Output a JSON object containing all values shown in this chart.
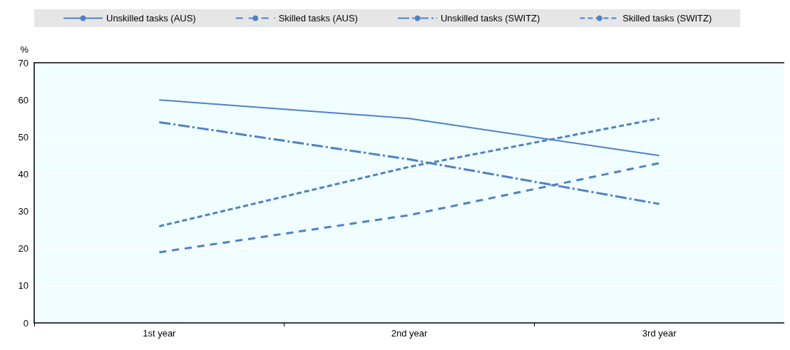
{
  "chart_data": {
    "type": "line",
    "ylabel": "%",
    "categories": [
      "1st year",
      "2nd year",
      "3rd year"
    ],
    "series": [
      {
        "name": "Unskilled tasks (AUS)",
        "color": "#4f81c7",
        "line_style": "solid",
        "values": [
          60,
          55,
          45
        ]
      },
      {
        "name": "Skilled tasks (AUS)",
        "color": "#4f81c7",
        "line_style": "dashed",
        "values": [
          19,
          29,
          43
        ]
      },
      {
        "name": "Unskilled tasks (SWITZ)",
        "color": "#4f81c7",
        "line_style": "dashdot",
        "values": [
          54,
          44,
          32
        ]
      },
      {
        "name": "Skilled tasks (SWITZ)",
        "color": "#4f81c7",
        "line_style": "dotted",
        "values": [
          26,
          42,
          55
        ]
      }
    ],
    "ylim": [
      0,
      70
    ],
    "yticks": [
      0,
      10,
      20,
      30,
      40,
      50,
      60,
      70
    ],
    "grid": "y",
    "legend": "top",
    "marker": "none"
  }
}
